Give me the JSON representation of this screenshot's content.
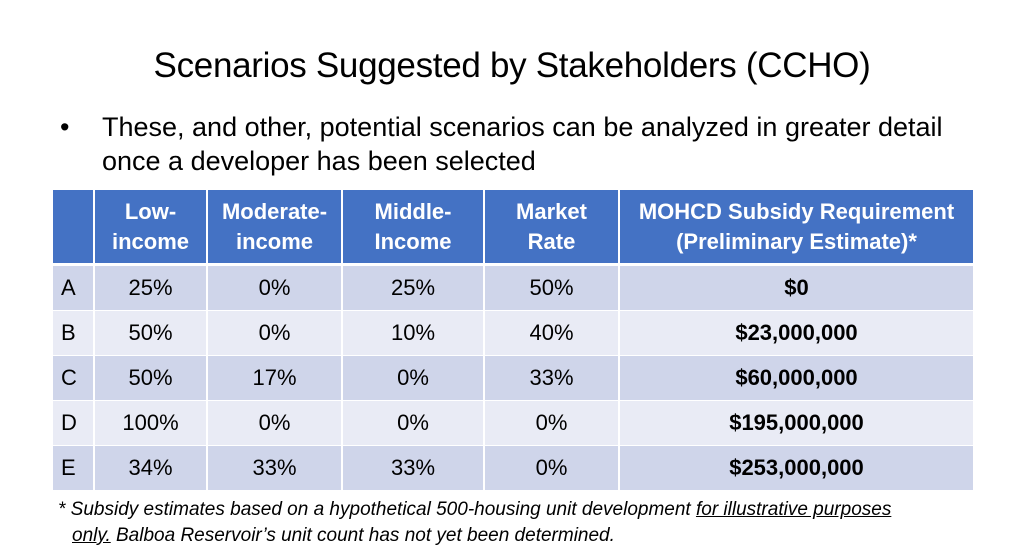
{
  "slide": {
    "title": "Scenarios Suggested by Stakeholders (CCHO)",
    "bullet": "These, and other, potential scenarios can be analyzed in greater detail once a developer has been selected",
    "bullet_symbol": "•"
  },
  "table": {
    "headers": [
      "",
      "Low-income",
      "Moderate-income",
      "Middle-Income",
      "Market Rate",
      "MOHCD Subsidy Requirement (Preliminary Estimate)*"
    ],
    "header_lines": [
      [
        "",
        ""
      ],
      [
        "Low-",
        "income"
      ],
      [
        "Moderate-",
        "income"
      ],
      [
        "Middle-",
        "Income"
      ],
      [
        "Market",
        "Rate"
      ],
      [
        "MOHCD Subsidy Requirement",
        "(Preliminary Estimate)*"
      ]
    ],
    "rows": [
      [
        "A",
        "25%",
        "0%",
        "25%",
        "50%",
        "$0"
      ],
      [
        "B",
        "50%",
        "0%",
        "10%",
        "40%",
        "$23,000,000"
      ],
      [
        "C",
        "50%",
        "17%",
        "0%",
        "33%",
        "$60,000,000"
      ],
      [
        "D",
        "100%",
        "0%",
        "0%",
        "0%",
        "$195,000,000"
      ],
      [
        "E",
        "34%",
        "33%",
        "33%",
        "0%",
        "$253,000,000"
      ]
    ]
  },
  "footnote": {
    "part1": "* Subsidy estimates based on a hypothetical 500-housing unit development ",
    "underlined_a": "for illustrative purposes",
    "underlined_b": "only.",
    "part2": " Balboa Reservoir’s unit count has not yet been determined."
  },
  "colors": {
    "header_bg": "#4472c4",
    "row_odd": "#cfd5ea",
    "row_even": "#e9ebf5"
  }
}
